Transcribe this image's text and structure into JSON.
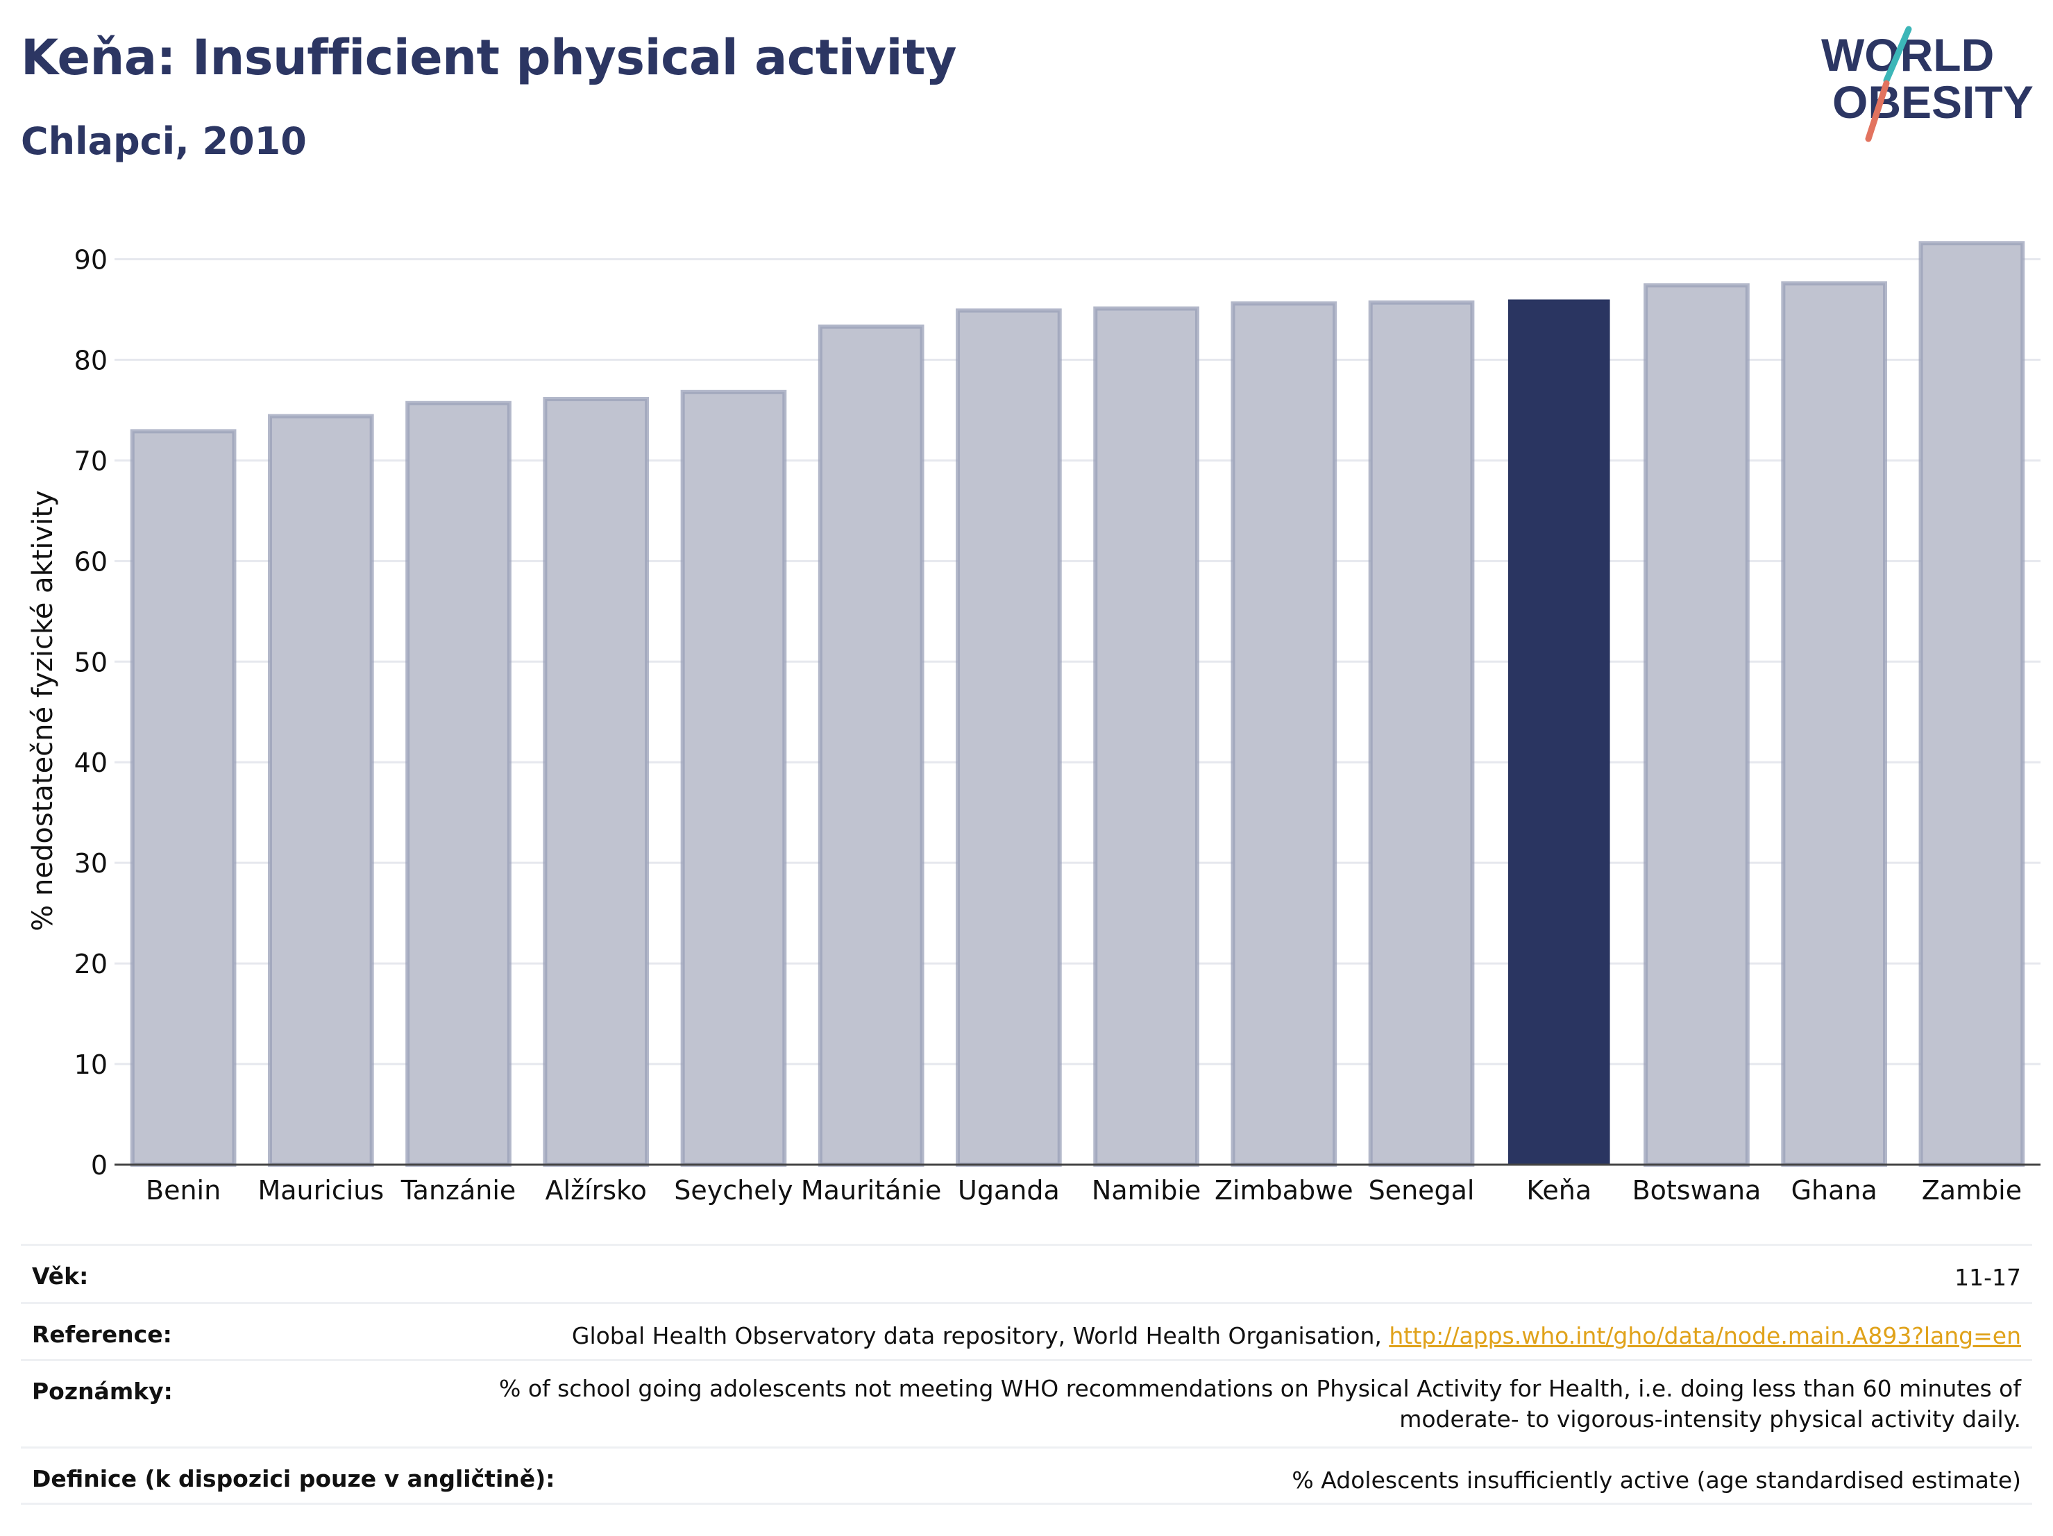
{
  "header": {
    "title": "Keňa: Insufficient physical activity",
    "subtitle": "Chlapci, 2010"
  },
  "logo": {
    "line1": "WORLD",
    "line2": "OBESITY",
    "colors": {
      "text": "#2c3663",
      "slash_teal": "#3cb6b8",
      "slash_coral": "#e2735f"
    }
  },
  "chart_data": {
    "type": "bar",
    "ylabel": "% nedostatečné fyzické aktivity",
    "xlabel": "",
    "ylim": [
      0,
      93
    ],
    "yticks": [
      0,
      10,
      20,
      30,
      40,
      50,
      60,
      70,
      80,
      90
    ],
    "grid": true,
    "categories": [
      "Benin",
      "Mauricius",
      "Tanzánie",
      "Alžírsko",
      "Seychely",
      "Mauritánie",
      "Uganda",
      "Namibie",
      "Zimbabwe",
      "Senegal",
      "Keňa",
      "Botswana",
      "Ghana",
      "Zambie"
    ],
    "values": [
      72.9,
      74.4,
      75.7,
      76.1,
      76.8,
      83.3,
      84.9,
      85.1,
      85.6,
      85.7,
      86.0,
      87.4,
      87.6,
      91.6
    ],
    "highlight": "Keňa",
    "colors": {
      "bar": "#c0c3d0",
      "bar_edge": "#9aa0b8",
      "highlight": "#2a3561",
      "grid": "#e6e8ee",
      "axis": "#444444"
    }
  },
  "info": {
    "rows": [
      {
        "label": "Věk:",
        "value": "11-17"
      },
      {
        "label": "Reference:",
        "value": "Global Health Observatory data repository, World Health Organisation, ",
        "link": "http://apps.who.int/gho/data/node.main.A893?lang=en"
      },
      {
        "label": "Poznámky:",
        "value": "% of school going adolescents not meeting WHO recommendations on Physical Activity for Health, i.e. doing less than 60 minutes of",
        "value2": "moderate- to vigorous-intensity physical activity daily."
      },
      {
        "label": "Definice (k dispozici pouze v angličtině):",
        "value": "% Adolescents insufficiently active (age standardised estimate)"
      }
    ]
  }
}
